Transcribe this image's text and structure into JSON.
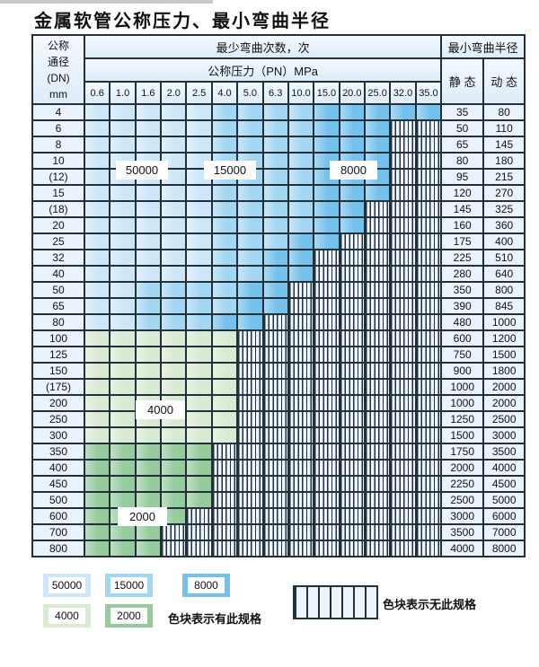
{
  "title": "金属软管公称压力、最小弯曲半径",
  "header": {
    "dn_lines": [
      "公称",
      "通径",
      "(DN)",
      "mm"
    ],
    "bend_cycles": "最少弯曲次数，次",
    "pressure": "公称压力（PN）MPa",
    "pressures": [
      "0.6",
      "1.0",
      "1.6",
      "2.0",
      "2.5",
      "4.0",
      "5.0",
      "6.3",
      "10.0",
      "15.0",
      "20.0",
      "25.0",
      "32.0",
      "35.0"
    ],
    "min_bend_radius": "最小弯曲半径",
    "static": "静 态",
    "dynamic": "动 态"
  },
  "colors": {
    "b1": "#cde7f8",
    "b2": "#a3d6f2",
    "b3": "#74c1eb",
    "g1": "#d9ead2",
    "g2": "#96cb9e",
    "hbg": "#eef4fb",
    "head": "#ddecf8",
    "side": "#eaf3fb",
    "grid": "#22303a"
  },
  "band_meanings": {
    "b1": "50000",
    "b2": "15000",
    "b3": "8000",
    "g1": "4000",
    "g2": "2000",
    "x": "无此规格"
  },
  "region_labels": [
    {
      "text": "50000"
    },
    {
      "text": "15000"
    },
    {
      "text": "8000"
    },
    {
      "text": "4000"
    },
    {
      "text": "2000"
    }
  ],
  "rows": [
    {
      "dn": "4",
      "static": "35",
      "dynamic": "80",
      "cells": [
        "b1",
        "b1",
        "b1",
        "b1",
        "b1",
        "b2",
        "b2",
        "b2",
        "b2",
        "b3",
        "b3",
        "b3",
        "b3",
        "b3"
      ]
    },
    {
      "dn": "6",
      "static": "50",
      "dynamic": "110",
      "cells": [
        "b1",
        "b1",
        "b1",
        "b1",
        "b1",
        "b2",
        "b2",
        "b2",
        "b2",
        "b3",
        "b3",
        "b3",
        "x",
        "x"
      ]
    },
    {
      "dn": "8",
      "static": "65",
      "dynamic": "145",
      "cells": [
        "b1",
        "b1",
        "b1",
        "b1",
        "b1",
        "b2",
        "b2",
        "b2",
        "b2",
        "b3",
        "b3",
        "b3",
        "x",
        "x"
      ]
    },
    {
      "dn": "10",
      "static": "80",
      "dynamic": "180",
      "cells": [
        "b1",
        "b1",
        "b1",
        "b1",
        "b1",
        "b2",
        "b2",
        "b2",
        "b2",
        "b3",
        "b3",
        "b3",
        "x",
        "x"
      ]
    },
    {
      "dn": "(12)",
      "static": "95",
      "dynamic": "215",
      "cells": [
        "b1",
        "b1",
        "b1",
        "b1",
        "b1",
        "b2",
        "b2",
        "b2",
        "b2",
        "b3",
        "b3",
        "b3",
        "x",
        "x"
      ]
    },
    {
      "dn": "15",
      "static": "120",
      "dynamic": "270",
      "cells": [
        "b1",
        "b1",
        "b1",
        "b1",
        "b1",
        "b2",
        "b2",
        "b2",
        "b2",
        "b3",
        "b3",
        "b3",
        "x",
        "x"
      ]
    },
    {
      "dn": "(18)",
      "static": "145",
      "dynamic": "325",
      "cells": [
        "b1",
        "b1",
        "b1",
        "b1",
        "b1",
        "b2",
        "b2",
        "b2",
        "b2",
        "b3",
        "b3",
        "x",
        "x",
        "x"
      ]
    },
    {
      "dn": "20",
      "static": "160",
      "dynamic": "360",
      "cells": [
        "b1",
        "b1",
        "b1",
        "b1",
        "b1",
        "b2",
        "b2",
        "b2",
        "b2",
        "b3",
        "b3",
        "x",
        "x",
        "x"
      ]
    },
    {
      "dn": "25",
      "static": "175",
      "dynamic": "400",
      "cells": [
        "b1",
        "b1",
        "b1",
        "b1",
        "b1",
        "b2",
        "b2",
        "b2",
        "b3",
        "b3",
        "x",
        "x",
        "x",
        "x"
      ]
    },
    {
      "dn": "32",
      "static": "225",
      "dynamic": "510",
      "cells": [
        "b1",
        "b1",
        "b1",
        "b1",
        "b1",
        "b2",
        "b2",
        "b3",
        "b3",
        "x",
        "x",
        "x",
        "x",
        "x"
      ]
    },
    {
      "dn": "40",
      "static": "280",
      "dynamic": "640",
      "cells": [
        "b1",
        "b1",
        "b1",
        "b1",
        "b1",
        "b2",
        "b2",
        "b3",
        "b3",
        "x",
        "x",
        "x",
        "x",
        "x"
      ]
    },
    {
      "dn": "50",
      "static": "350",
      "dynamic": "800",
      "cells": [
        "b1",
        "b1",
        "b2",
        "b2",
        "b2",
        "b2",
        "b3",
        "b3",
        "x",
        "x",
        "x",
        "x",
        "x",
        "x"
      ]
    },
    {
      "dn": "65",
      "static": "390",
      "dynamic": "845",
      "cells": [
        "b1",
        "b1",
        "b2",
        "b2",
        "b2",
        "b2",
        "b3",
        "b3",
        "x",
        "x",
        "x",
        "x",
        "x",
        "x"
      ]
    },
    {
      "dn": "80",
      "static": "480",
      "dynamic": "1000",
      "cells": [
        "b1",
        "b1",
        "b2",
        "b2",
        "b2",
        "b3",
        "b3",
        "x",
        "x",
        "x",
        "x",
        "x",
        "x",
        "x"
      ]
    },
    {
      "dn": "100",
      "static": "600",
      "dynamic": "1200",
      "cells": [
        "g1",
        "g1",
        "g1",
        "g1",
        "g1",
        "g1",
        "x",
        "x",
        "x",
        "x",
        "x",
        "x",
        "x",
        "x"
      ]
    },
    {
      "dn": "125",
      "static": "750",
      "dynamic": "1500",
      "cells": [
        "g1",
        "g1",
        "g1",
        "g1",
        "g1",
        "g1",
        "x",
        "x",
        "x",
        "x",
        "x",
        "x",
        "x",
        "x"
      ]
    },
    {
      "dn": "150",
      "static": "900",
      "dynamic": "1800",
      "cells": [
        "g1",
        "g1",
        "g1",
        "g1",
        "g1",
        "g1",
        "x",
        "x",
        "x",
        "x",
        "x",
        "x",
        "x",
        "x"
      ]
    },
    {
      "dn": "(175)",
      "static": "1000",
      "dynamic": "2000",
      "cells": [
        "g1",
        "g1",
        "g1",
        "g1",
        "g1",
        "g1",
        "x",
        "x",
        "x",
        "x",
        "x",
        "x",
        "x",
        "x"
      ]
    },
    {
      "dn": "200",
      "static": "1000",
      "dynamic": "2000",
      "cells": [
        "g1",
        "g1",
        "g1",
        "g1",
        "g1",
        "g1",
        "x",
        "x",
        "x",
        "x",
        "x",
        "x",
        "x",
        "x"
      ]
    },
    {
      "dn": "250",
      "static": "1250",
      "dynamic": "2500",
      "cells": [
        "g1",
        "g1",
        "g1",
        "g1",
        "g1",
        "g1",
        "x",
        "x",
        "x",
        "x",
        "x",
        "x",
        "x",
        "x"
      ]
    },
    {
      "dn": "300",
      "static": "1500",
      "dynamic": "3000",
      "cells": [
        "g1",
        "g1",
        "g1",
        "g1",
        "g1",
        "g1",
        "x",
        "x",
        "x",
        "x",
        "x",
        "x",
        "x",
        "x"
      ]
    },
    {
      "dn": "350",
      "static": "1750",
      "dynamic": "3500",
      "cells": [
        "g2",
        "g2",
        "g2",
        "g2",
        "g2",
        "x",
        "x",
        "x",
        "x",
        "x",
        "x",
        "x",
        "x",
        "x"
      ]
    },
    {
      "dn": "400",
      "static": "2000",
      "dynamic": "4000",
      "cells": [
        "g2",
        "g2",
        "g2",
        "g2",
        "g2",
        "x",
        "x",
        "x",
        "x",
        "x",
        "x",
        "x",
        "x",
        "x"
      ]
    },
    {
      "dn": "450",
      "static": "2250",
      "dynamic": "4500",
      "cells": [
        "g2",
        "g2",
        "g2",
        "g2",
        "g2",
        "x",
        "x",
        "x",
        "x",
        "x",
        "x",
        "x",
        "x",
        "x"
      ]
    },
    {
      "dn": "500",
      "static": "2500",
      "dynamic": "5000",
      "cells": [
        "g2",
        "g2",
        "g2",
        "g2",
        "g2",
        "x",
        "x",
        "x",
        "x",
        "x",
        "x",
        "x",
        "x",
        "x"
      ]
    },
    {
      "dn": "600",
      "static": "3000",
      "dynamic": "6000",
      "cells": [
        "g2",
        "g2",
        "g2",
        "g2",
        "x",
        "x",
        "x",
        "x",
        "x",
        "x",
        "x",
        "x",
        "x",
        "x"
      ]
    },
    {
      "dn": "700",
      "static": "3500",
      "dynamic": "7000",
      "cells": [
        "g2",
        "g2",
        "g2",
        "x",
        "x",
        "x",
        "x",
        "x",
        "x",
        "x",
        "x",
        "x",
        "x",
        "x"
      ]
    },
    {
      "dn": "800",
      "static": "4000",
      "dynamic": "8000",
      "cells": [
        "g2",
        "g2",
        "g2",
        "x",
        "x",
        "x",
        "x",
        "x",
        "x",
        "x",
        "x",
        "x",
        "x",
        "x"
      ]
    }
  ],
  "legend": {
    "items": [
      {
        "label": "50000",
        "band": "b1"
      },
      {
        "label": "15000",
        "band": "b2"
      },
      {
        "label": "8000",
        "band": "b3"
      },
      {
        "label": "4000",
        "band": "g1"
      },
      {
        "label": "2000",
        "band": "g2"
      }
    ],
    "available_note": "色块表示有此规格",
    "unavailable_note": "色块表示无此规格"
  }
}
